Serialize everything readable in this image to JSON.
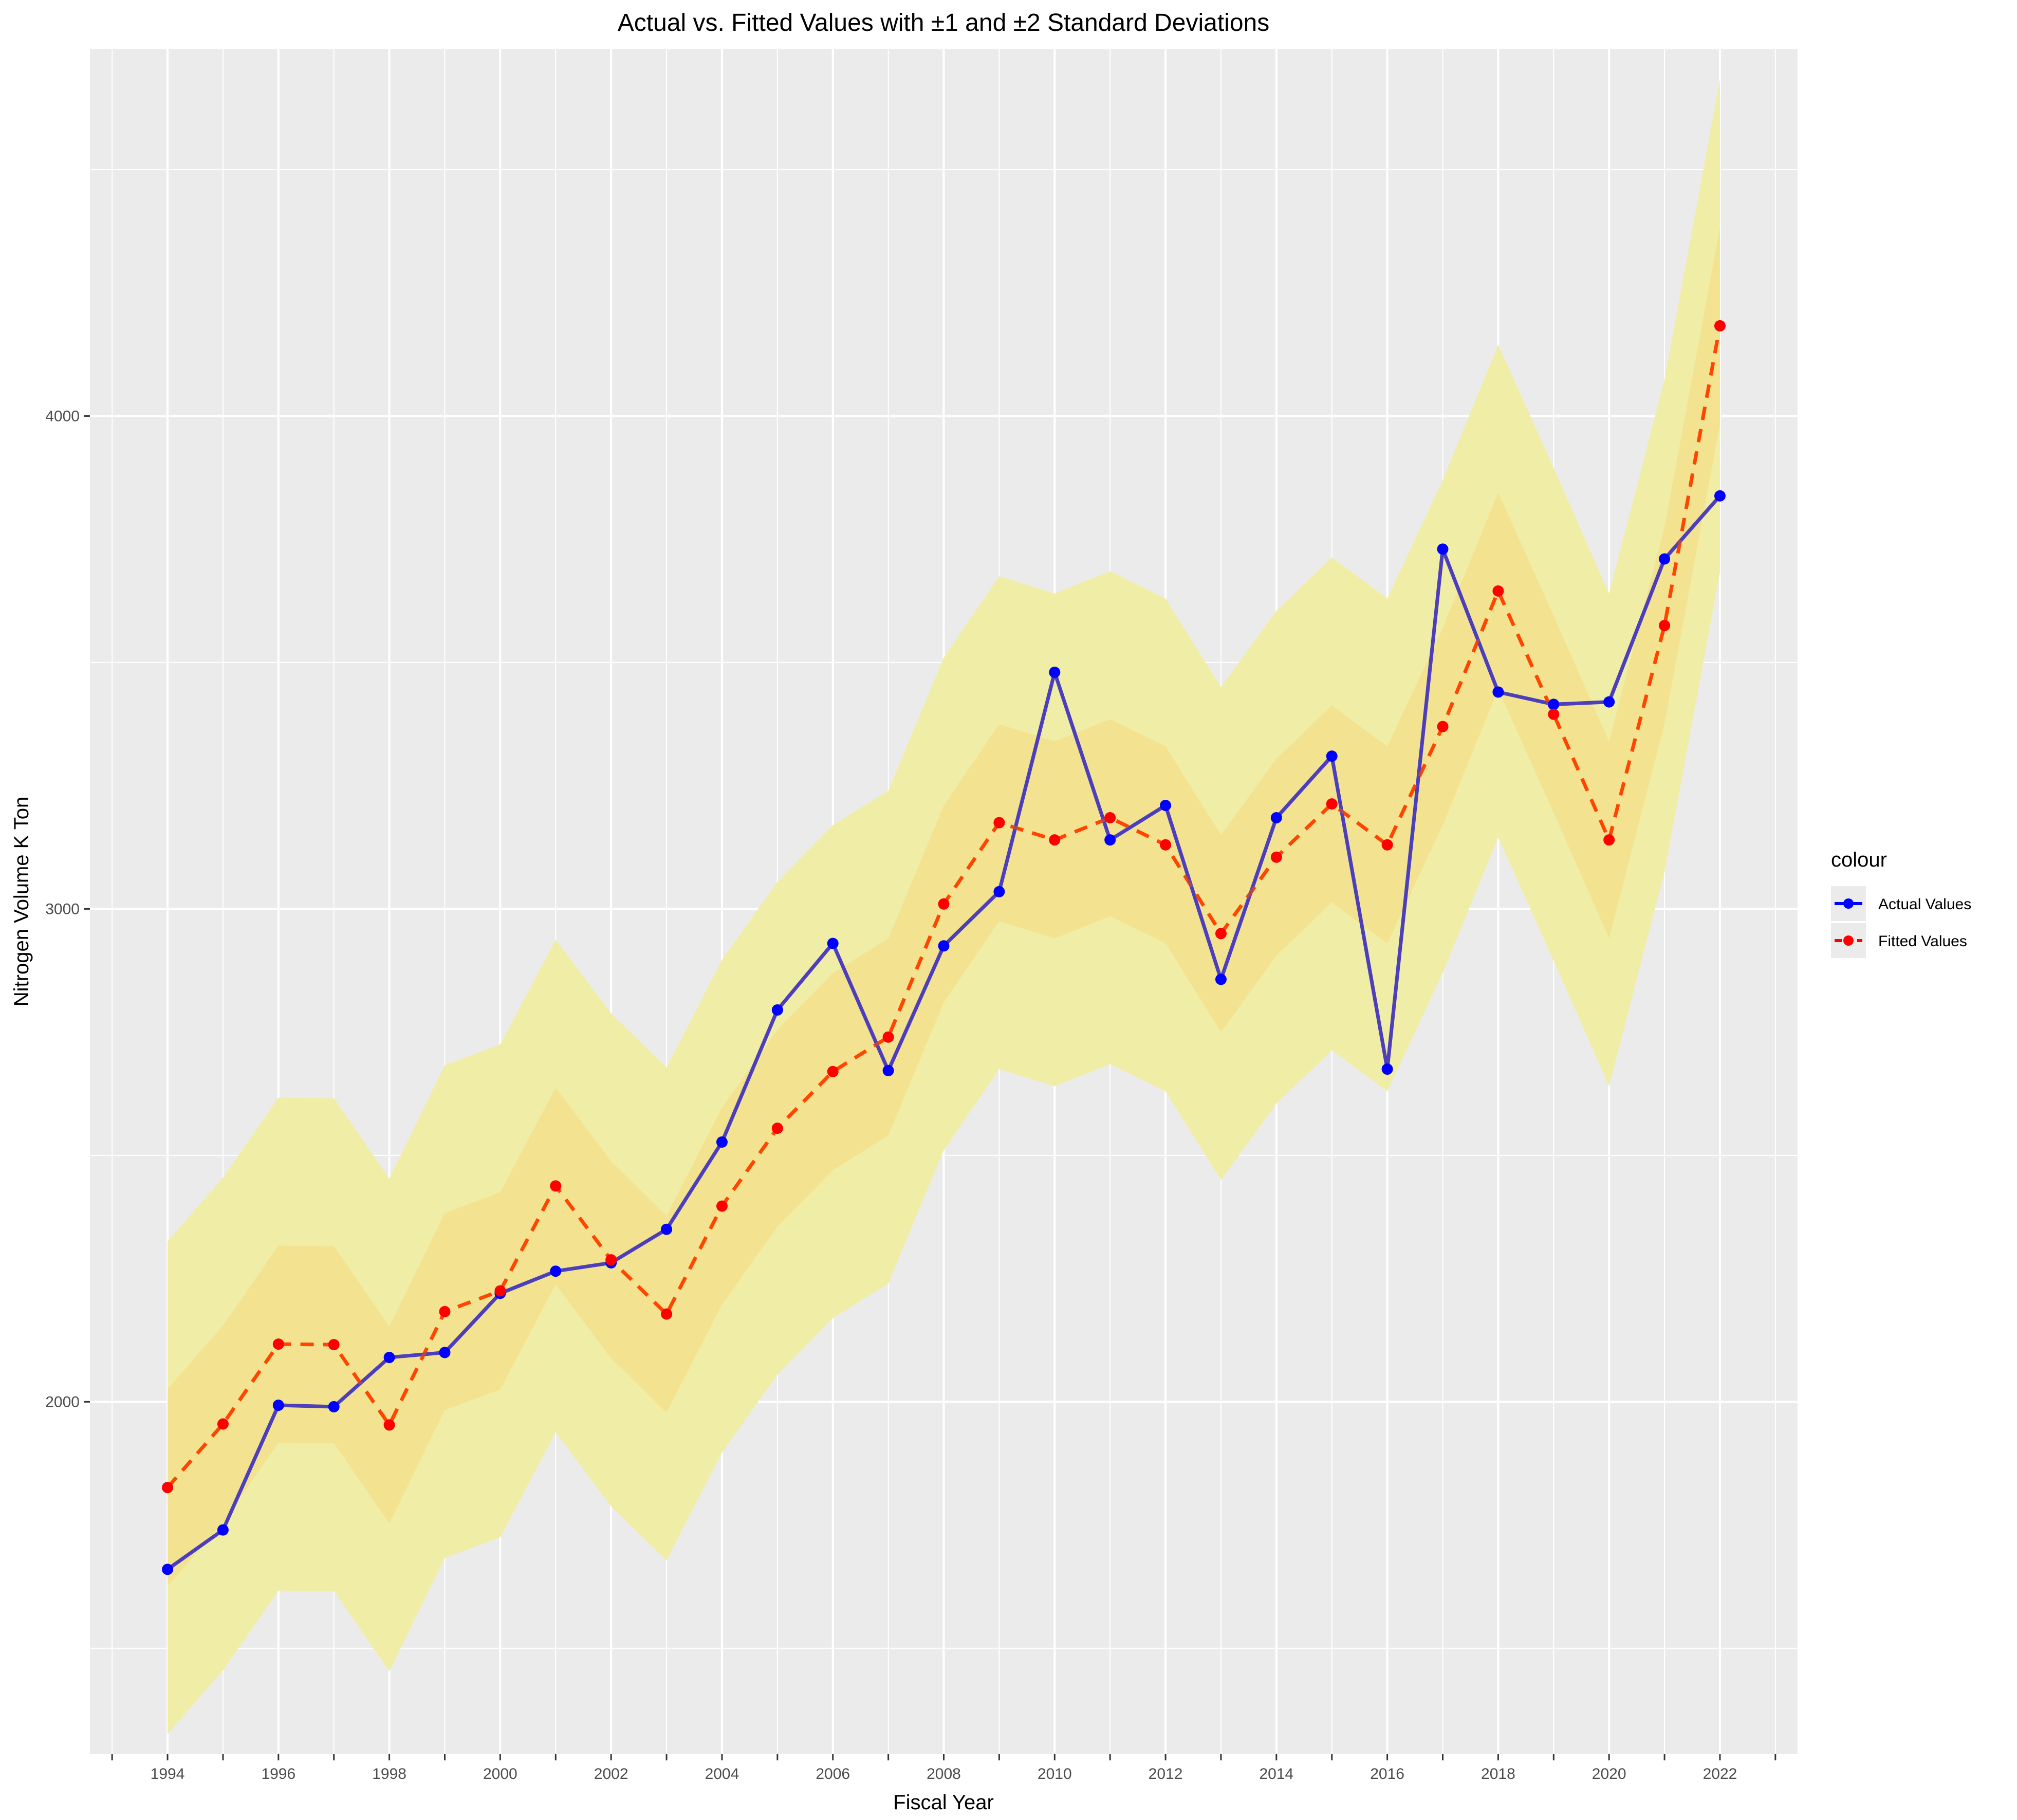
{
  "chart_data": {
    "type": "line",
    "title": "Actual vs. Fitted Values with ±1 and ±2 Standard Deviations",
    "xlabel": "Fiscal Year",
    "ylabel": "Nitrogen Volume K Ton",
    "x": [
      1994,
      1995,
      1996,
      1997,
      1998,
      1999,
      2000,
      2001,
      2002,
      2003,
      2004,
      2005,
      2006,
      2007,
      2008,
      2009,
      2010,
      2011,
      2012,
      2013,
      2014,
      2015,
      2016,
      2017,
      2018,
      2019,
      2020,
      2021,
      2022
    ],
    "x_ticks": [
      "1994",
      "1996",
      "1998",
      "2000",
      "2002",
      "2004",
      "2006",
      "2008",
      "2010",
      "2012",
      "2014",
      "2016",
      "2018",
      "2020",
      "2022"
    ],
    "y_ticks": [
      "2000",
      "3000",
      "4000"
    ],
    "xlim": [
      1992.6,
      2023.4
    ],
    "ylim": [
      1285,
      4745
    ],
    "series": [
      {
        "name": "Actual Values",
        "color": "#0000ff",
        "line_style": "solid",
        "values": [
          1660,
          1740,
          1993,
          1990,
          2090,
          2100,
          2220,
          2265,
          2282,
          2350,
          2527,
          2795,
          2930,
          2672,
          2925,
          3035,
          3480,
          3140,
          3210,
          2857,
          3185,
          3310,
          2675,
          3730,
          3440,
          3415,
          3420,
          3710,
          3838
        ]
      },
      {
        "name": "Fitted Values",
        "color": "#ff0000",
        "line_style": "dashed",
        "values": [
          1826,
          1955,
          2117,
          2116,
          1953,
          2183,
          2225,
          2438,
          2288,
          2178,
          2397,
          2555,
          2670,
          2740,
          3010,
          3175,
          3140,
          3185,
          3130,
          2950,
          3105,
          3213,
          3130,
          3370,
          3645,
          3395,
          3140,
          3575,
          4183
        ]
      }
    ],
    "bands": [
      {
        "label": "±2 SD",
        "offset": 500,
        "color": "#f0eea6"
      },
      {
        "label": "±1 SD",
        "offset": 200,
        "color": "#f3e391"
      }
    ],
    "overlap_color": "#5d4aa8",
    "background": "#ebebeb",
    "grid": true,
    "legend": {
      "title": "colour",
      "position": "right",
      "entries": [
        {
          "label": "Actual Values",
          "color": "#0000ff"
        },
        {
          "label": "Fitted Values",
          "color": "#ff0000"
        }
      ]
    }
  }
}
